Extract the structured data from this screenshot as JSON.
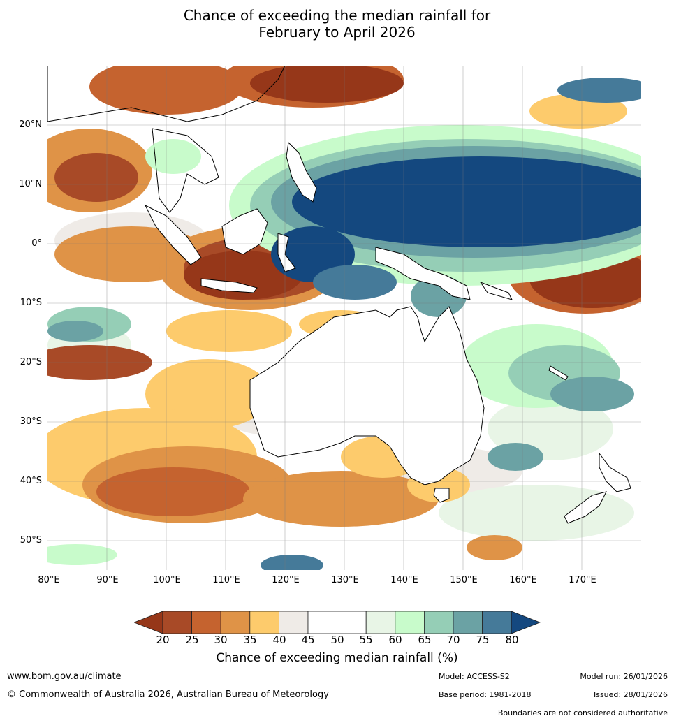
{
  "title": {
    "line1": "Chance of exceeding the median rainfall for",
    "line2": "February to April 2026"
  },
  "map": {
    "lat_labels": [
      "20°N",
      "10°N",
      "0°",
      "10°S",
      "20°S",
      "30°S",
      "40°S",
      "50°S"
    ],
    "lon_labels": [
      "80°E",
      "90°E",
      "100°E",
      "110°E",
      "120°E",
      "130°E",
      "140°E",
      "150°E",
      "160°E",
      "170°E"
    ],
    "extent": {
      "lon": [
        80,
        180
      ],
      "lat": [
        -55,
        30
      ]
    },
    "palette": [
      "#963719",
      "#a84a27",
      "#c5632f",
      "#df9347",
      "#fdcb6c",
      "#efebe7",
      "#ffffff",
      "#ffffff",
      "#e8f5e6",
      "#c8fbcb",
      "#95ceb6",
      "#6ba2a4",
      "#457a99",
      "#14487f"
    ]
  },
  "colorbar": {
    "ticks": [
      "20",
      "25",
      "30",
      "35",
      "40",
      "45",
      "50",
      "55",
      "60",
      "65",
      "70",
      "75",
      "80"
    ],
    "label": "Chance of exceeding median rainfall (%)"
  },
  "footer": {
    "url": "www.bom.gov.au/climate",
    "copyright": "© Commonwealth of Australia 2026, Australian Bureau of Meteorology",
    "model": "Model: ACCESS-S2",
    "base_period": "Base period: 1981-2018",
    "model_run": "Model run: 26/01/2026",
    "issued": "Issued: 28/01/2026",
    "disclaimer": "Boundaries are not considered authoritative"
  }
}
